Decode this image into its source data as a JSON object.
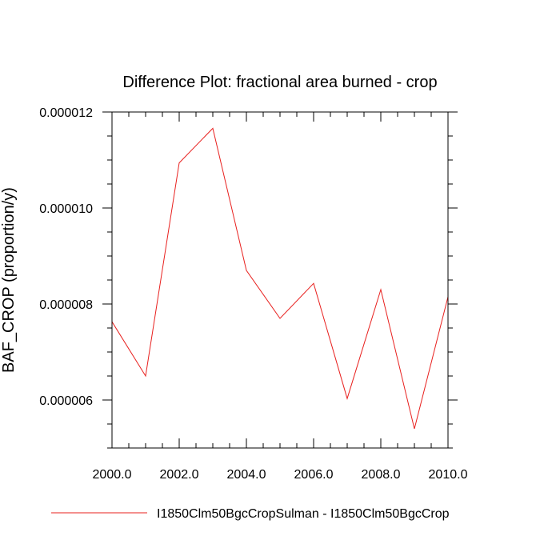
{
  "chart_data": {
    "type": "line",
    "title": "Difference Plot: fractional area burned - crop",
    "xlabel": "",
    "ylabel": "BAF_CROP  (proportion/y)",
    "xlim": [
      2000,
      2010
    ],
    "ylim": [
      5e-06,
      1.2e-05
    ],
    "x_ticks": [
      2000,
      2002,
      2004,
      2006,
      2008,
      2010
    ],
    "x_tick_labels": [
      "2000.0",
      "2002.0",
      "2004.0",
      "2006.0",
      "2008.0",
      "2010.0"
    ],
    "y_ticks": [
      6e-06,
      8e-06,
      1e-05,
      1.2e-05
    ],
    "y_tick_labels": [
      "0.000006",
      "0.000008",
      "0.000010",
      "0.000012"
    ],
    "grid": false,
    "legend_position": "bottom",
    "x": [
      2000,
      2001,
      2002,
      2003,
      2004,
      2005,
      2006,
      2007,
      2008,
      2009,
      2010
    ],
    "series": [
      {
        "name": "I1850Clm50BgcCropSulman - I1850Clm50BgcCrop",
        "color": "#e8201e",
        "values": [
          7.63e-06,
          6.5e-06,
          1.094e-05,
          1.166e-05,
          8.7e-06,
          7.7e-06,
          8.43e-06,
          6.03e-06,
          8.3e-06,
          5.4e-06,
          8.15e-06
        ]
      }
    ]
  }
}
